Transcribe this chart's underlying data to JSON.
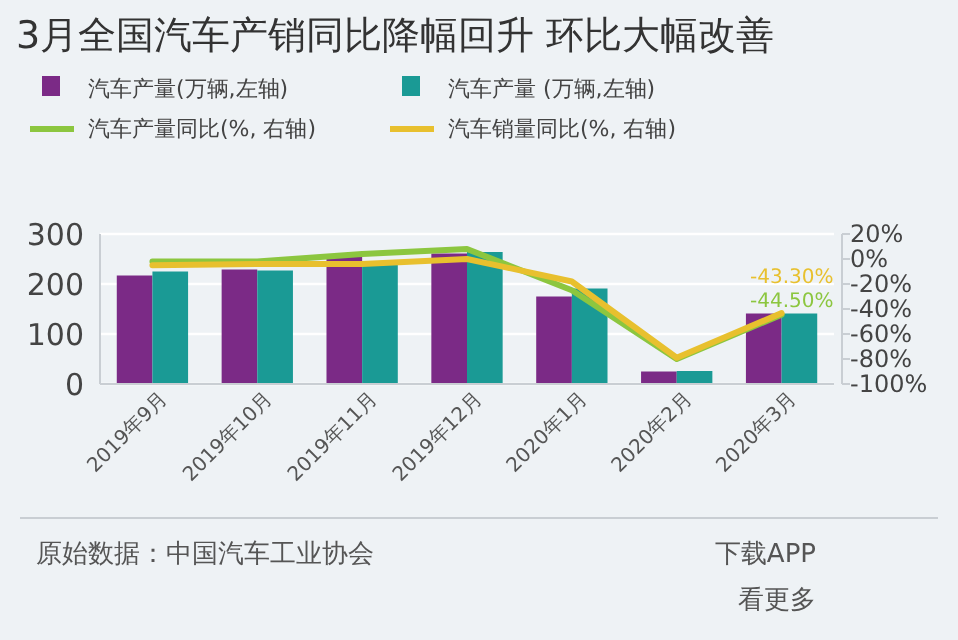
{
  "chart_data": {
    "type": "bar",
    "title": "3月全国汽车产销同比降幅回升 环比大幅改善",
    "categories": [
      "2019年9月",
      "2019年10月",
      "2019年11月",
      "2019年12月",
      "2020年1月",
      "2020年2月",
      "2020年3月"
    ],
    "series": [
      {
        "name": "汽车产量(万辆,左轴)",
        "color": "#7b2a86",
        "values": [
          217,
          229,
          255,
          261,
          175,
          25,
          141
        ]
      },
      {
        "name": "汽车产量 (万辆,左轴)",
        "color": "#1a9a95",
        "values": [
          225,
          227,
          241,
          264,
          191,
          26,
          141
        ]
      },
      {
        "name": "汽车产量同比(%, 右轴)",
        "type": "line",
        "axis": "y2",
        "color": "#8cc63f",
        "values": [
          -2,
          -2,
          4,
          8,
          -25,
          -80,
          -44.5
        ],
        "value_labels": [
          null,
          null,
          null,
          null,
          null,
          null,
          "-44.50%"
        ]
      },
      {
        "name": "汽车销量同比(%, 右轴)",
        "type": "line",
        "axis": "y2",
        "color": "#e8c02e",
        "values": [
          -5,
          -4,
          -4,
          0,
          -18,
          -79,
          -43.3
        ],
        "value_labels": [
          null,
          null,
          null,
          null,
          null,
          null,
          "-43.30%"
        ]
      }
    ],
    "ylim": [
      0,
      300
    ],
    "yticks": [
      0,
      100,
      200,
      300
    ],
    "y2lim": [
      -100,
      20
    ],
    "y2ticks": [
      {
        "value": 20,
        "label": "20%"
      },
      {
        "value": 0,
        "label": "0%"
      },
      {
        "value": -20,
        "label": "-20%"
      },
      {
        "value": -40,
        "label": "-40%"
      },
      {
        "value": -60,
        "label": "-60%"
      },
      {
        "value": -80,
        "label": "-80%"
      },
      {
        "value": -100,
        "label": "-100%"
      }
    ],
    "grid": "y",
    "legend": "top",
    "marker": "none",
    "annotations": [
      "原始数据：中国汽车工业协会",
      "下载APP",
      "看更多"
    ]
  }
}
